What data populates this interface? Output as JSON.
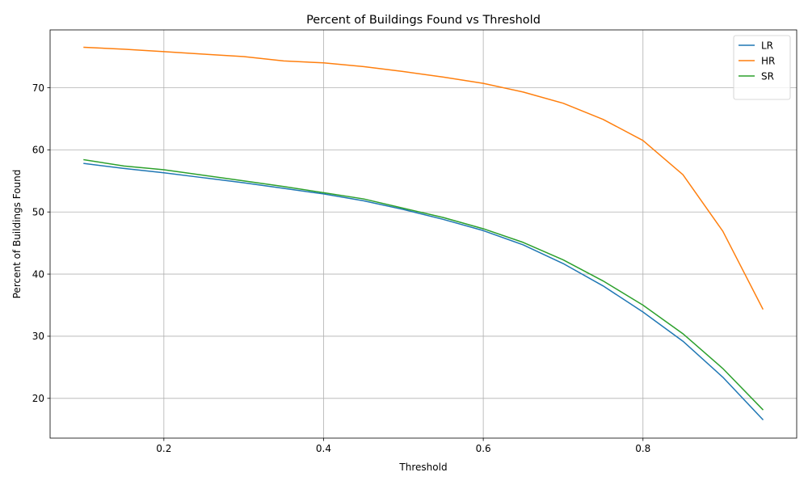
{
  "chart_data": {
    "type": "line",
    "title": "Percent of Buildings Found vs Threshold",
    "xlabel": "Threshold",
    "ylabel": "Percent of Buildings Found",
    "xlim": [
      0.0575,
      0.9925
    ],
    "ylim": [
      13.6,
      79.3
    ],
    "xticks": [
      0.2,
      0.4,
      0.6,
      0.8
    ],
    "xtick_labels": [
      "0.2",
      "0.4",
      "0.6",
      "0.8"
    ],
    "yticks": [
      20,
      30,
      40,
      50,
      60,
      70
    ],
    "ytick_labels": [
      "20",
      "30",
      "40",
      "50",
      "60",
      "70"
    ],
    "grid": true,
    "legend_position": "top-right",
    "x": [
      0.1,
      0.15,
      0.2,
      0.25,
      0.3,
      0.35,
      0.4,
      0.45,
      0.5,
      0.55,
      0.6,
      0.65,
      0.7,
      0.75,
      0.8,
      0.85,
      0.9,
      0.95
    ],
    "series": [
      {
        "name": "LR",
        "color": "#1f77b4",
        "values": [
          57.8,
          57.0,
          56.3,
          55.5,
          54.7,
          53.8,
          52.9,
          51.8,
          50.4,
          48.8,
          47.0,
          44.7,
          41.7,
          38.1,
          33.9,
          29.2,
          23.4,
          16.6
        ]
      },
      {
        "name": "HR",
        "color": "#ff7f0e",
        "values": [
          76.5,
          76.2,
          75.8,
          75.4,
          75.0,
          74.3,
          74.0,
          73.4,
          72.6,
          71.7,
          70.7,
          69.3,
          67.5,
          64.9,
          61.5,
          56.0,
          46.9,
          34.4
        ]
      },
      {
        "name": "SR",
        "color": "#2ca02c",
        "values": [
          58.4,
          57.4,
          56.8,
          55.9,
          55.0,
          54.1,
          53.1,
          52.1,
          50.6,
          49.1,
          47.3,
          45.1,
          42.3,
          38.9,
          35.0,
          30.4,
          24.8,
          18.2
        ]
      }
    ]
  }
}
